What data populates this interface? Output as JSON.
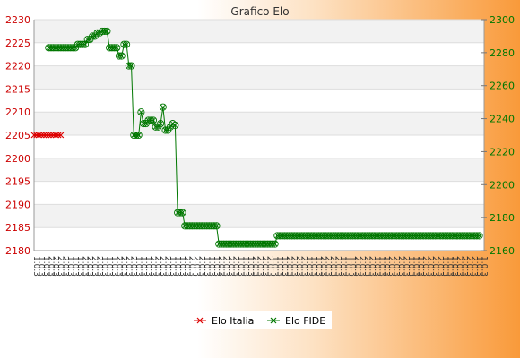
{
  "chart_data": {
    "type": "line",
    "title": "Grafico Elo",
    "left_axis": {
      "ticks": [
        2180,
        2185,
        2190,
        2195,
        2200,
        2205,
        2210,
        2215,
        2220,
        2225,
        2230
      ],
      "ylim": [
        2180,
        2230
      ]
    },
    "right_axis": {
      "ticks": [
        2160,
        2180,
        2200,
        2220,
        2240,
        2260,
        2280,
        2300
      ],
      "ylim": [
        2160,
        2300
      ]
    },
    "grid": true,
    "legend_position": "bottom",
    "series": [
      {
        "name": "Elo Italia",
        "axis": "left",
        "color": "#dd0000",
        "start": 0,
        "values": [
          2205,
          2205,
          2205,
          2205,
          2205,
          2205,
          2205,
          2205,
          2205,
          2205,
          2205,
          2205
        ]
      },
      {
        "name": "Elo FIDE",
        "axis": "right",
        "color": "#007700",
        "start": 6,
        "values": [
          2283,
          2283,
          2283,
          2283,
          2283,
          2283,
          2283,
          2283,
          2283,
          2283,
          2283,
          2283,
          2285,
          2285,
          2285,
          2285,
          2288,
          2288,
          2290,
          2290,
          2292,
          2292,
          2293,
          2293,
          2293,
          2283,
          2283,
          2283,
          2283,
          2278,
          2278,
          2285,
          2285,
          2272,
          2272,
          2230,
          2230,
          2230,
          2244,
          2237,
          2237,
          2239,
          2239,
          2239,
          2235,
          2235,
          2237,
          2247,
          2233,
          2233,
          2235,
          2237,
          2236,
          2183,
          2183,
          2183,
          2175,
          2175,
          2175,
          2175,
          2175,
          2175,
          2175,
          2175,
          2175,
          2175,
          2175,
          2175,
          2175,
          2175,
          2164,
          2164,
          2164,
          2164,
          2164,
          2164,
          2164,
          2164,
          2164,
          2164,
          2164,
          2164,
          2164,
          2164,
          2164,
          2164,
          2164,
          2164,
          2164,
          2164,
          2164,
          2164,
          2164,
          2164,
          2169,
          2169,
          2169,
          2169,
          2169,
          2169,
          2169,
          2169,
          2169,
          2169,
          2169,
          2169,
          2169,
          2169,
          2169,
          2169,
          2169,
          2169,
          2169,
          2169,
          2169,
          2169,
          2169,
          2169,
          2169,
          2169,
          2169,
          2169,
          2169,
          2169,
          2169,
          2169,
          2169,
          2169,
          2169,
          2169,
          2169,
          2169,
          2169,
          2169,
          2169,
          2169,
          2169,
          2169,
          2169,
          2169,
          2169,
          2169,
          2169,
          2169,
          2169,
          2169,
          2169,
          2169,
          2169,
          2169,
          2169,
          2169,
          2169,
          2169,
          2169,
          2169,
          2169,
          2169,
          2169,
          2169,
          2169,
          2169,
          2169,
          2169,
          2169,
          2169,
          2169,
          2169,
          2169,
          2169,
          2169,
          2169,
          2169,
          2169,
          2169,
          2169,
          2169,
          2169
        ]
      }
    ],
    "x_count": 186,
    "x_labels_pattern": [
      "1",
      "1",
      "1",
      "2",
      "2",
      "2",
      "2"
    ]
  }
}
